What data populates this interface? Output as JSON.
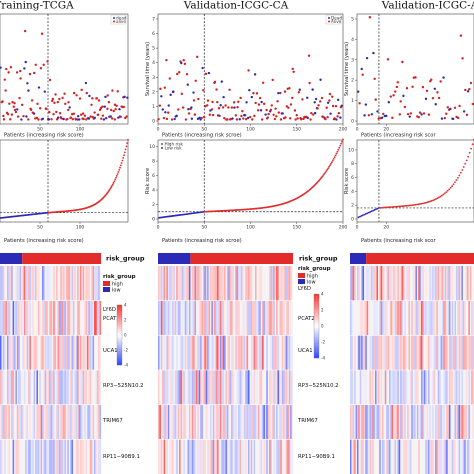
{
  "panels": [
    {
      "title": "Training-TCGA",
      "n": 160,
      "cutoff": 60,
      "x_ticks": [
        "50",
        "100"
      ],
      "x_tick_vals": [
        50,
        100
      ],
      "survival_ylabel": "",
      "survival_yticks": [],
      "survival_legend": [
        "dead",
        "alive"
      ],
      "risk_ylabel": "",
      "risk_yticks": [],
      "risk_legend": [],
      "xlabel": "Patients (increasing risk score)",
      "risk_threshold": 1.0,
      "risk_max": 12
    },
    {
      "title": "Validation-ICGC-CA",
      "n": 200,
      "cutoff": 50,
      "x_ticks": [
        "0",
        "50",
        "100",
        "150",
        "200"
      ],
      "x_tick_vals": [
        0,
        50,
        100,
        150,
        200
      ],
      "survival_ylabel": "Survival time (years)",
      "survival_yticks": [
        "0",
        "1",
        "2",
        "3",
        "4",
        "5",
        "6",
        "7"
      ],
      "survival_legend": [
        "Dead",
        "Alive"
      ],
      "risk_ylabel": "Risk score",
      "risk_yticks": [
        "0",
        "2",
        "4",
        "6",
        "8",
        "10"
      ],
      "risk_legend": [
        "High risk",
        "Low risk"
      ],
      "xlabel": "Patients (increasing risk scroe)",
      "risk_threshold": 1.0,
      "risk_max": 10.5
    },
    {
      "title": "Validation-ICGC-A",
      "n": 80,
      "cutoff": 15,
      "x_ticks": [
        "0",
        "20"
      ],
      "x_tick_vals": [
        0,
        20
      ],
      "survival_ylabel": "Survival time (years)",
      "survival_yticks": [
        "0",
        "1",
        "2",
        "3",
        "4",
        "5"
      ],
      "survival_legend": [],
      "risk_ylabel": "Risk score",
      "risk_yticks": [
        "0",
        "2",
        "4",
        "6",
        "8",
        "10"
      ],
      "risk_legend": [],
      "xlabel": "Patients (increasing risk scor",
      "risk_threshold": 1.6,
      "risk_max": 11
    }
  ],
  "heatmap": {
    "risk_group_label": "risk_group",
    "genes": [
      "LY6D",
      "PCAT2",
      "UCA1",
      "RP3−525N10.2",
      "TRIM67",
      "RP11−90B9.1"
    ],
    "legend_title": "risk_group",
    "legend_items": [
      "high",
      "low"
    ],
    "colorbar_ticks": [
      "4",
      "2",
      "0",
      "-2",
      "-4"
    ],
    "colorbar_ticks_2": [
      "4",
      "2",
      "0",
      "-2",
      "-4"
    ],
    "low_fraction": [
      0.22,
      0.24,
      0.13
    ]
  },
  "colors": {
    "high": "#e32b2b",
    "low": "#2b2bb8",
    "dead": "#2b2bb8",
    "alive": "#d62020",
    "heat_pos": "#d62020",
    "heat_neg": "#2b3fb0"
  },
  "chart_data": [
    {
      "type": "scatter",
      "title": "Training-TCGA",
      "xlabel": "Patients (increasing risk score)",
      "series": [
        {
          "name": "dead"
        },
        {
          "name": "alive"
        }
      ],
      "cutoff_patient": 60
    },
    {
      "type": "scatter",
      "title": "Validation-ICGC-CA",
      "xlabel": "Patients (increasing risk scroe)",
      "ylabel": "Survival time (years)",
      "ylim": [
        0,
        7
      ],
      "series": [
        {
          "name": "Dead"
        },
        {
          "name": "Alive"
        }
      ],
      "cutoff_patient": 50
    },
    {
      "type": "scatter",
      "title": "Validation-ICGC-A",
      "ylabel": "Survival time (years)",
      "ylim": [
        0,
        5
      ],
      "cutoff_patient": 15
    },
    {
      "type": "scatter",
      "xlabel": "Patients (increasing risk score)",
      "x_ticks": [
        50,
        100
      ],
      "risk_threshold": 1.0,
      "cutoff_patient": 60
    },
    {
      "type": "scatter",
      "xlabel": "Patients (increasing risk scroe)",
      "ylabel": "Risk score",
      "ylim": [
        0,
        10.5
      ],
      "series": [
        {
          "name": "High risk"
        },
        {
          "name": "Low risk"
        }
      ],
      "risk_threshold": 1.0,
      "cutoff_patient": 50
    },
    {
      "type": "scatter",
      "ylabel": "Risk score",
      "ylim": [
        0,
        11
      ],
      "risk_threshold": 1.6,
      "cutoff_patient": 15
    },
    {
      "type": "heatmap",
      "rows": [
        "LY6D",
        "PCAT2",
        "UCA1",
        "RP3−525N10.2",
        "TRIM67",
        "RP11−90B9.1"
      ],
      "annotation": "risk_group",
      "groups": [
        "high",
        "low"
      ]
    }
  ]
}
